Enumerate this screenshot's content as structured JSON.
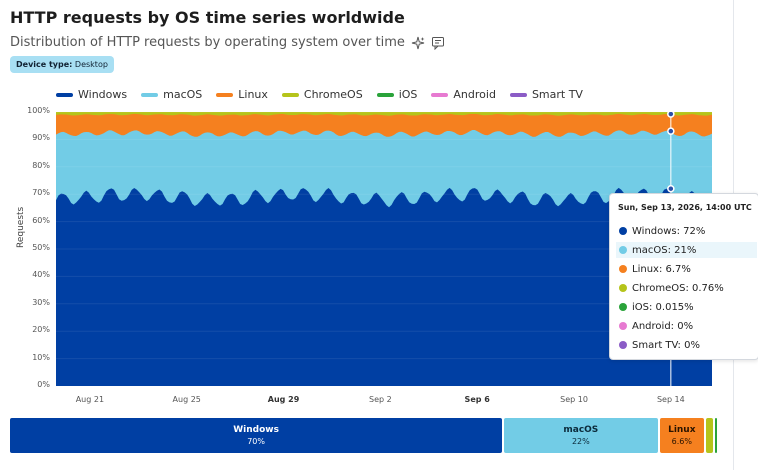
{
  "header": {
    "title": "HTTP requests by OS time series worldwide",
    "subtitle": "Distribution of HTTP requests by operating system over time",
    "badge_key": "Device type:",
    "badge_value": "Desktop"
  },
  "legend": [
    {
      "label": "Windows",
      "color": "#003fa3"
    },
    {
      "label": "macOS",
      "color": "#72cce6"
    },
    {
      "label": "Linux",
      "color": "#f5801f"
    },
    {
      "label": "ChromeOS",
      "color": "#b5c41b"
    },
    {
      "label": "iOS",
      "color": "#2aa33a"
    },
    {
      "label": "Android",
      "color": "#e77ad1"
    },
    {
      "label": "Smart TV",
      "color": "#8b5cc6"
    }
  ],
  "chart_data": {
    "type": "area",
    "ylabel": "Requests",
    "y_ticks": [
      "0%",
      "10%",
      "20%",
      "30%",
      "40%",
      "50%",
      "60%",
      "70%",
      "80%",
      "90%",
      "100%"
    ],
    "ylim": [
      0,
      100
    ],
    "x_ticks": [
      {
        "label": "Aug 21",
        "day": 21,
        "bold": false
      },
      {
        "label": "Aug 25",
        "day": 25,
        "bold": false
      },
      {
        "label": "Aug 29",
        "day": 29,
        "bold": true
      },
      {
        "label": "Sep 2",
        "day": 33,
        "bold": false
      },
      {
        "label": "Sep 6",
        "day": 37,
        "bold": true
      },
      {
        "label": "Sep 10",
        "day": 41,
        "bold": false
      },
      {
        "label": "Sep 14",
        "day": 45,
        "bold": false
      }
    ],
    "x_range_days": [
      19.6,
      46.7
    ],
    "stacked": true,
    "series": [
      {
        "name": "Windows",
        "color": "#003fa3",
        "mean": 68.5,
        "amp": 3.0
      },
      {
        "name": "macOS",
        "color": "#72cce6",
        "mean": 23.0,
        "amp": 2.2
      },
      {
        "name": "Linux",
        "color": "#f5801f",
        "mean": 6.8,
        "amp": 0.9
      },
      {
        "name": "ChromeOS",
        "color": "#b5c41b",
        "mean": 1.0,
        "amp": 0.3
      },
      {
        "name": "iOS",
        "color": "#2aa33a",
        "mean": 0.02,
        "amp": 0
      },
      {
        "name": "Android",
        "color": "#e77ad1",
        "mean": 0,
        "amp": 0
      },
      {
        "name": "Smart TV",
        "color": "#8b5cc6",
        "mean": 0,
        "amp": 0
      }
    ],
    "hover_day": 45,
    "hover_points": [
      72,
      93,
      99.7,
      100
    ]
  },
  "tooltip": {
    "title": "Sun, Sep 13, 2026, 14:00 UTC",
    "rows": [
      {
        "label": "Windows: 72%",
        "color": "#003fa3"
      },
      {
        "label": "macOS: 21%",
        "color": "#72cce6"
      },
      {
        "label": "Linux: 6.7%",
        "color": "#f5801f"
      },
      {
        "label": "ChromeOS: 0.76%",
        "color": "#b5c41b"
      },
      {
        "label": "iOS: 0.015%",
        "color": "#2aa33a"
      },
      {
        "label": "Android: 0%",
        "color": "#e77ad1"
      },
      {
        "label": "Smart TV: 0%",
        "color": "#8b5cc6"
      }
    ],
    "highlight_index": 1
  },
  "summary_bar": [
    {
      "name": "Windows",
      "pct": "70%",
      "value": 70,
      "color": "#003fa3",
      "text_color": "#ffffff"
    },
    {
      "name": "macOS",
      "pct": "22%",
      "value": 22,
      "color": "#72cce6",
      "text_color": "#0b2a3a"
    },
    {
      "name": "Linux",
      "pct": "6.6%",
      "value": 6.6,
      "color": "#f5801f",
      "text_color": "#2b1400"
    },
    {
      "name": "",
      "pct": "",
      "value": 1.2,
      "color": "#b5c41b",
      "text_color": "#222"
    },
    {
      "name": "",
      "pct": "",
      "value": 0.2,
      "color": "#2aa33a",
      "text_color": "#222"
    }
  ]
}
